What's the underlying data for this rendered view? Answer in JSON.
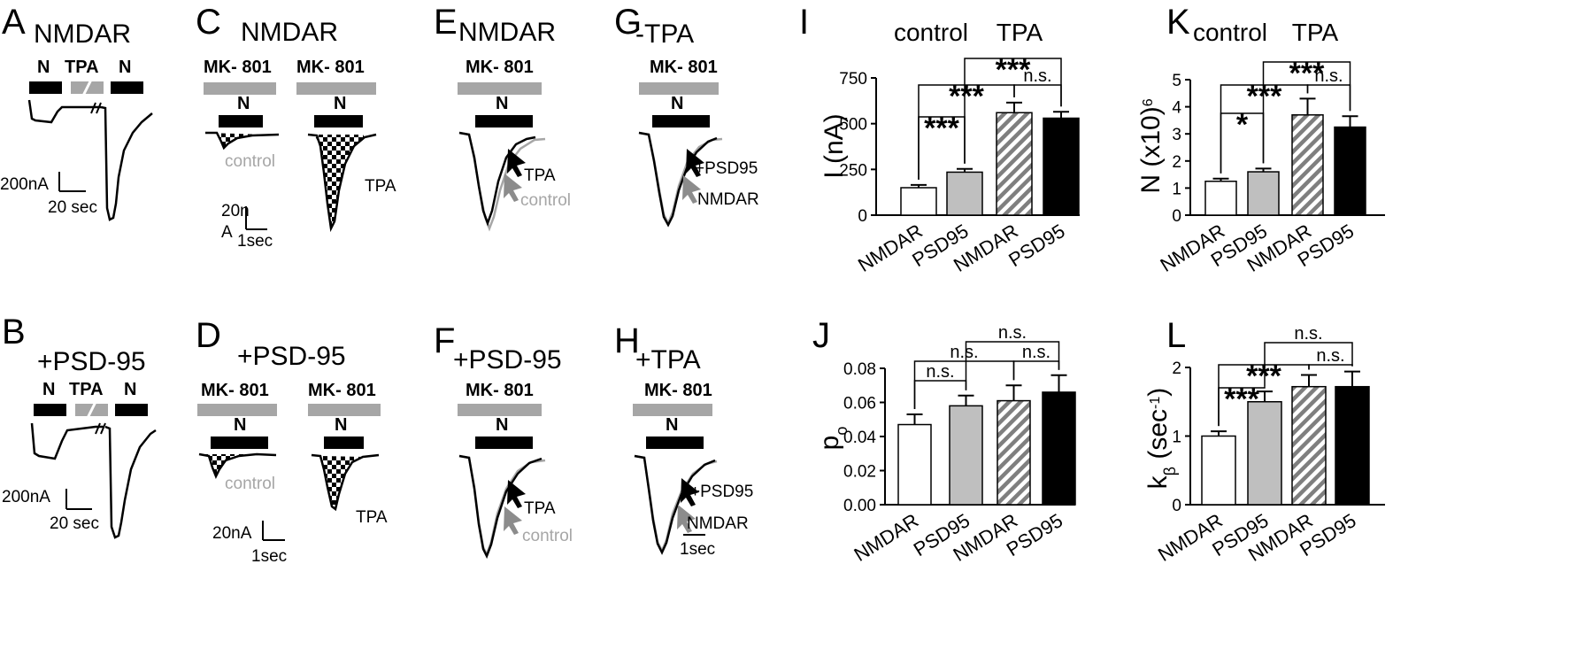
{
  "panels": {
    "A": {
      "letter": "A",
      "sub": "NMDAR",
      "labels": {
        "n1": "N",
        "tpa": "TPA",
        "n2": "N"
      },
      "scale": {
        "y": "200nA",
        "x": "20 sec"
      }
    },
    "B": {
      "letter": "B",
      "title": "+PSD-95",
      "labels": {
        "n1": "N",
        "tpa": "TPA",
        "n2": "N"
      },
      "scale": {
        "y": "200nA",
        "x": "20 sec"
      }
    },
    "C": {
      "letter": "C",
      "title": "NMDAR",
      "mk1": "MK- 801",
      "mk2": "MK- 801",
      "n1": "N",
      "n2": "N",
      "control": "control",
      "tpa": "TPA",
      "scale_y1": "20n",
      "scale_y2": "A",
      "scale_x": "1sec"
    },
    "D": {
      "letter": "D",
      "title": "+PSD-95",
      "mk1": "MK- 801",
      "mk2": "MK- 801",
      "n1": "N",
      "n2": "N",
      "control": "control",
      "tpa": "TPA",
      "scale_y": "20nA",
      "scale_x": "1sec"
    },
    "E": {
      "letter": "E",
      "sub": "NMDAR",
      "mk": "MK- 801",
      "n": "N",
      "tpa": "TPA",
      "control": "control"
    },
    "F": {
      "letter": "F",
      "title": "+PSD-95",
      "mk": "MK- 801",
      "n": "N",
      "tpa": "TPA",
      "control": "control"
    },
    "G": {
      "letter": "G",
      "sub": "-TPA",
      "mk": "MK- 801",
      "n": "N",
      "psd": "+PSD95",
      "nmdar": "NMDAR"
    },
    "H": {
      "letter": "H",
      "title": "+TPA",
      "mk": "MK- 801",
      "n": "N",
      "psd": "+PSD95",
      "nmdar": "NMDAR",
      "scale_x": "1sec"
    }
  },
  "colors": {
    "gray": "#a6a6a6",
    "black": "#000000",
    "white": "#ffffff",
    "hatch_dark": "#7f7f7f"
  },
  "chart_data": [
    {
      "panel": "I",
      "type": "bar",
      "categories": [
        "NMDAR",
        "PSD95",
        "NMDAR",
        "PSD95"
      ],
      "group_labels": [
        "control",
        "TPA"
      ],
      "values": [
        150,
        235,
        560,
        530
      ],
      "errors": [
        15,
        18,
        55,
        35
      ],
      "ylabel": "I (nA)",
      "ylim": [
        0,
        750
      ],
      "yticks": [
        "0",
        "250",
        "500",
        "750"
      ],
      "fills": [
        "white",
        "gray",
        "hatch",
        "black"
      ],
      "significance": [
        {
          "label": "***"
        },
        {
          "label": "***"
        },
        {
          "label": "***"
        },
        {
          "label": "n.s."
        }
      ]
    },
    {
      "panel": "K",
      "type": "bar",
      "categories": [
        "NMDAR",
        "PSD95",
        "NMDAR",
        "PSD95"
      ],
      "group_labels": [
        "control",
        "TPA"
      ],
      "values": [
        1.25,
        1.6,
        3.7,
        3.25
      ],
      "errors": [
        0.1,
        0.12,
        0.6,
        0.4
      ],
      "ylabel_main": "N (x10",
      "ylabel_sup": "6",
      "ylabel_end": ")",
      "ylim": [
        0,
        5
      ],
      "yticks": [
        "0",
        "1",
        "2",
        "3",
        "4",
        "5"
      ],
      "fills": [
        "white",
        "gray",
        "hatch",
        "black"
      ],
      "significance": [
        {
          "label": "*"
        },
        {
          "label": "***"
        },
        {
          "label": "***"
        },
        {
          "label": "n.s."
        }
      ]
    },
    {
      "panel": "J",
      "type": "bar",
      "categories": [
        "NMDAR",
        "PSD95",
        "NMDAR",
        "PSD95"
      ],
      "values": [
        0.047,
        0.058,
        0.061,
        0.066
      ],
      "errors": [
        0.006,
        0.006,
        0.009,
        0.01
      ],
      "ylabel_main": "p",
      "ylabel_sub": "o",
      "ylim": [
        0,
        0.08
      ],
      "yticks": [
        "0.00",
        "0.02",
        "0.04",
        "0.06",
        "0.08"
      ],
      "fills": [
        "white",
        "gray",
        "hatch",
        "black"
      ],
      "significance": [
        {
          "label": "n.s."
        },
        {
          "label": "n.s."
        },
        {
          "label": "n.s."
        },
        {
          "label": "n.s."
        }
      ]
    },
    {
      "panel": "L",
      "type": "bar",
      "categories": [
        "NMDAR",
        "PSD95",
        "NMDAR",
        "PSD95"
      ],
      "values": [
        1.0,
        1.5,
        1.72,
        1.72
      ],
      "errors": [
        0.07,
        0.15,
        0.17,
        0.22
      ],
      "ylabel_main": "k",
      "ylabel_sub": "β",
      "ylabel_end": " (sec",
      "ylabel_sup": "-1",
      "ylabel_close": ")",
      "ylim": [
        0,
        2
      ],
      "yticks": [
        "0",
        "1",
        "2"
      ],
      "fills": [
        "white",
        "gray",
        "hatch",
        "black"
      ],
      "significance": [
        {
          "label": "***"
        },
        {
          "label": "***"
        },
        {
          "label": "n.s."
        },
        {
          "label": "n.s."
        }
      ]
    }
  ]
}
